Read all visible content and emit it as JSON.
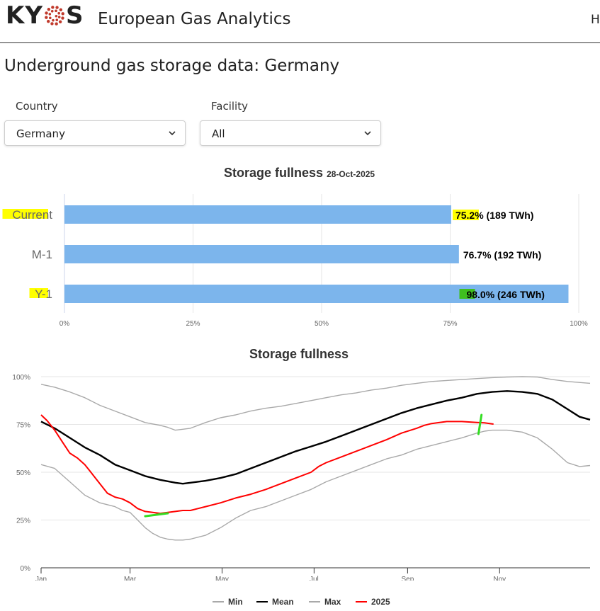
{
  "header": {
    "logo": {
      "text_left": "KY",
      "text_right": "S",
      "dot_color": "#c0392b"
    },
    "app_title": "European Gas Analytics",
    "cut_nav_text": "H"
  },
  "page_title": "Underground gas storage data: Germany",
  "filters": {
    "country": {
      "label": "Country",
      "value": "Germany"
    },
    "facility": {
      "label": "Facility",
      "value": "All"
    }
  },
  "bar_chart": {
    "title": "Storage fullness",
    "subtitle": "28-Oct-2025",
    "colors": {
      "bar": "#7cb5ec",
      "highlight_yellow": "#ffff00",
      "highlight_green": "#3fbf1f"
    }
  },
  "line_chart": {
    "title": "Storage fullness",
    "colors": {
      "Min": "#a9a9a9",
      "Mean": "#000000",
      "Max": "#a9a9a9",
      "2025": "#ff0000",
      "annotation": "#33dd22"
    }
  },
  "chart_data": [
    {
      "type": "bar",
      "orientation": "horizontal",
      "title": "Storage fullness",
      "subtitle": "28-Oct-2025",
      "categories": [
        "Current",
        "M-1",
        "Y-1"
      ],
      "values": [
        75.2,
        76.7,
        98.0
      ],
      "labels": [
        "75.2% (189 TWh)",
        "76.7% (192 TWh)",
        "98.0% (246 TWh)"
      ],
      "value_parts": [
        [
          "75.2",
          "% (189 TWh)"
        ],
        [
          "76.7",
          "% (192 TWh)"
        ],
        [
          "98.0",
          "% (246 TWh)"
        ]
      ],
      "xlim": [
        0,
        100
      ],
      "ticks": [
        "0%",
        "25%",
        "50%",
        "75%",
        "100%"
      ],
      "grid": true
    },
    {
      "type": "line",
      "title": "Storage fullness",
      "xlabel": "",
      "ylabel": "",
      "x_unit": "day_of_year",
      "xlim": [
        1,
        365
      ],
      "ylim": [
        0,
        100
      ],
      "x_ticks": [
        {
          "day": 1,
          "label": "Jan"
        },
        {
          "day": 60,
          "label": "Mar"
        },
        {
          "day": 121,
          "label": "May"
        },
        {
          "day": 182,
          "label": "Jul"
        },
        {
          "day": 244,
          "label": "Sep"
        },
        {
          "day": 305,
          "label": "Nov"
        }
      ],
      "y_ticks": [
        "0%",
        "25%",
        "50%",
        "75%",
        "100%"
      ],
      "grid": true,
      "legend_position": "bottom-center",
      "series": [
        {
          "name": "Min",
          "x": [
            1,
            10,
            20,
            30,
            40,
            50,
            55,
            60,
            65,
            70,
            75,
            80,
            85,
            90,
            95,
            100,
            110,
            120,
            130,
            140,
            150,
            160,
            170,
            180,
            190,
            200,
            210,
            220,
            230,
            240,
            250,
            260,
            270,
            280,
            290,
            295,
            300,
            305,
            310,
            320,
            330,
            340,
            350,
            358,
            365
          ],
          "values": [
            54,
            52,
            45,
            38,
            34,
            32,
            30,
            29,
            25,
            21,
            18,
            16,
            15,
            14.5,
            14.5,
            15,
            17,
            21,
            26,
            30,
            32,
            35,
            38,
            41,
            45,
            48,
            51,
            54,
            57,
            59,
            62,
            64,
            66,
            68,
            70.5,
            71.5,
            72,
            72,
            72,
            71,
            68,
            62,
            55,
            53,
            53.5
          ]
        },
        {
          "name": "Mean",
          "x": [
            1,
            10,
            20,
            30,
            40,
            50,
            60,
            70,
            80,
            90,
            95,
            100,
            110,
            120,
            130,
            140,
            150,
            160,
            170,
            180,
            190,
            200,
            210,
            220,
            230,
            240,
            250,
            260,
            270,
            280,
            290,
            300,
            310,
            320,
            330,
            340,
            350,
            358,
            365
          ],
          "values": [
            76.5,
            73,
            68,
            63,
            59,
            54,
            51,
            48,
            46,
            44.5,
            44,
            44.5,
            45.5,
            47,
            49,
            52,
            55,
            58,
            61,
            63.5,
            66,
            69,
            72,
            75,
            78,
            81,
            83.5,
            85.5,
            87.5,
            89,
            91,
            92,
            92.5,
            92,
            91,
            88,
            83,
            79,
            77.5
          ]
        },
        {
          "name": "Max",
          "x": [
            1,
            10,
            20,
            30,
            40,
            50,
            60,
            70,
            80,
            85,
            90,
            100,
            110,
            120,
            130,
            140,
            150,
            160,
            170,
            180,
            190,
            200,
            210,
            220,
            230,
            240,
            250,
            260,
            270,
            280,
            290,
            300,
            310,
            320,
            330,
            340,
            350,
            365
          ],
          "values": [
            96,
            94.5,
            92,
            89,
            85,
            82,
            79,
            76,
            74.5,
            73.5,
            72,
            73,
            76,
            78.5,
            80,
            82,
            83.5,
            84.5,
            86,
            87.5,
            89,
            90.5,
            91.5,
            93,
            94,
            95.5,
            96.5,
            97.5,
            98,
            98.5,
            99,
            99.5,
            99.8,
            100,
            99.8,
            98.5,
            97.5,
            96.5
          ]
        },
        {
          "name": "2025",
          "x": [
            1,
            5,
            10,
            15,
            20,
            25,
            30,
            35,
            40,
            45,
            50,
            55,
            60,
            65,
            70,
            75,
            80,
            85,
            90,
            95,
            100,
            105,
            110,
            120,
            130,
            140,
            150,
            160,
            170,
            180,
            185,
            190,
            200,
            210,
            220,
            230,
            240,
            250,
            255,
            260,
            270,
            280,
            290,
            295,
            301
          ],
          "values": [
            80,
            77,
            72,
            66,
            60,
            57.5,
            54,
            49,
            44,
            39,
            37,
            36,
            34,
            31,
            29.5,
            29,
            28.5,
            29,
            29.5,
            30,
            30,
            31,
            32,
            34,
            36.5,
            38.5,
            41,
            44,
            47,
            50,
            53,
            55,
            58,
            61,
            64,
            67,
            70.5,
            73,
            74.5,
            75.5,
            76.5,
            76.5,
            76,
            75.8,
            75.2
          ]
        }
      ]
    }
  ]
}
